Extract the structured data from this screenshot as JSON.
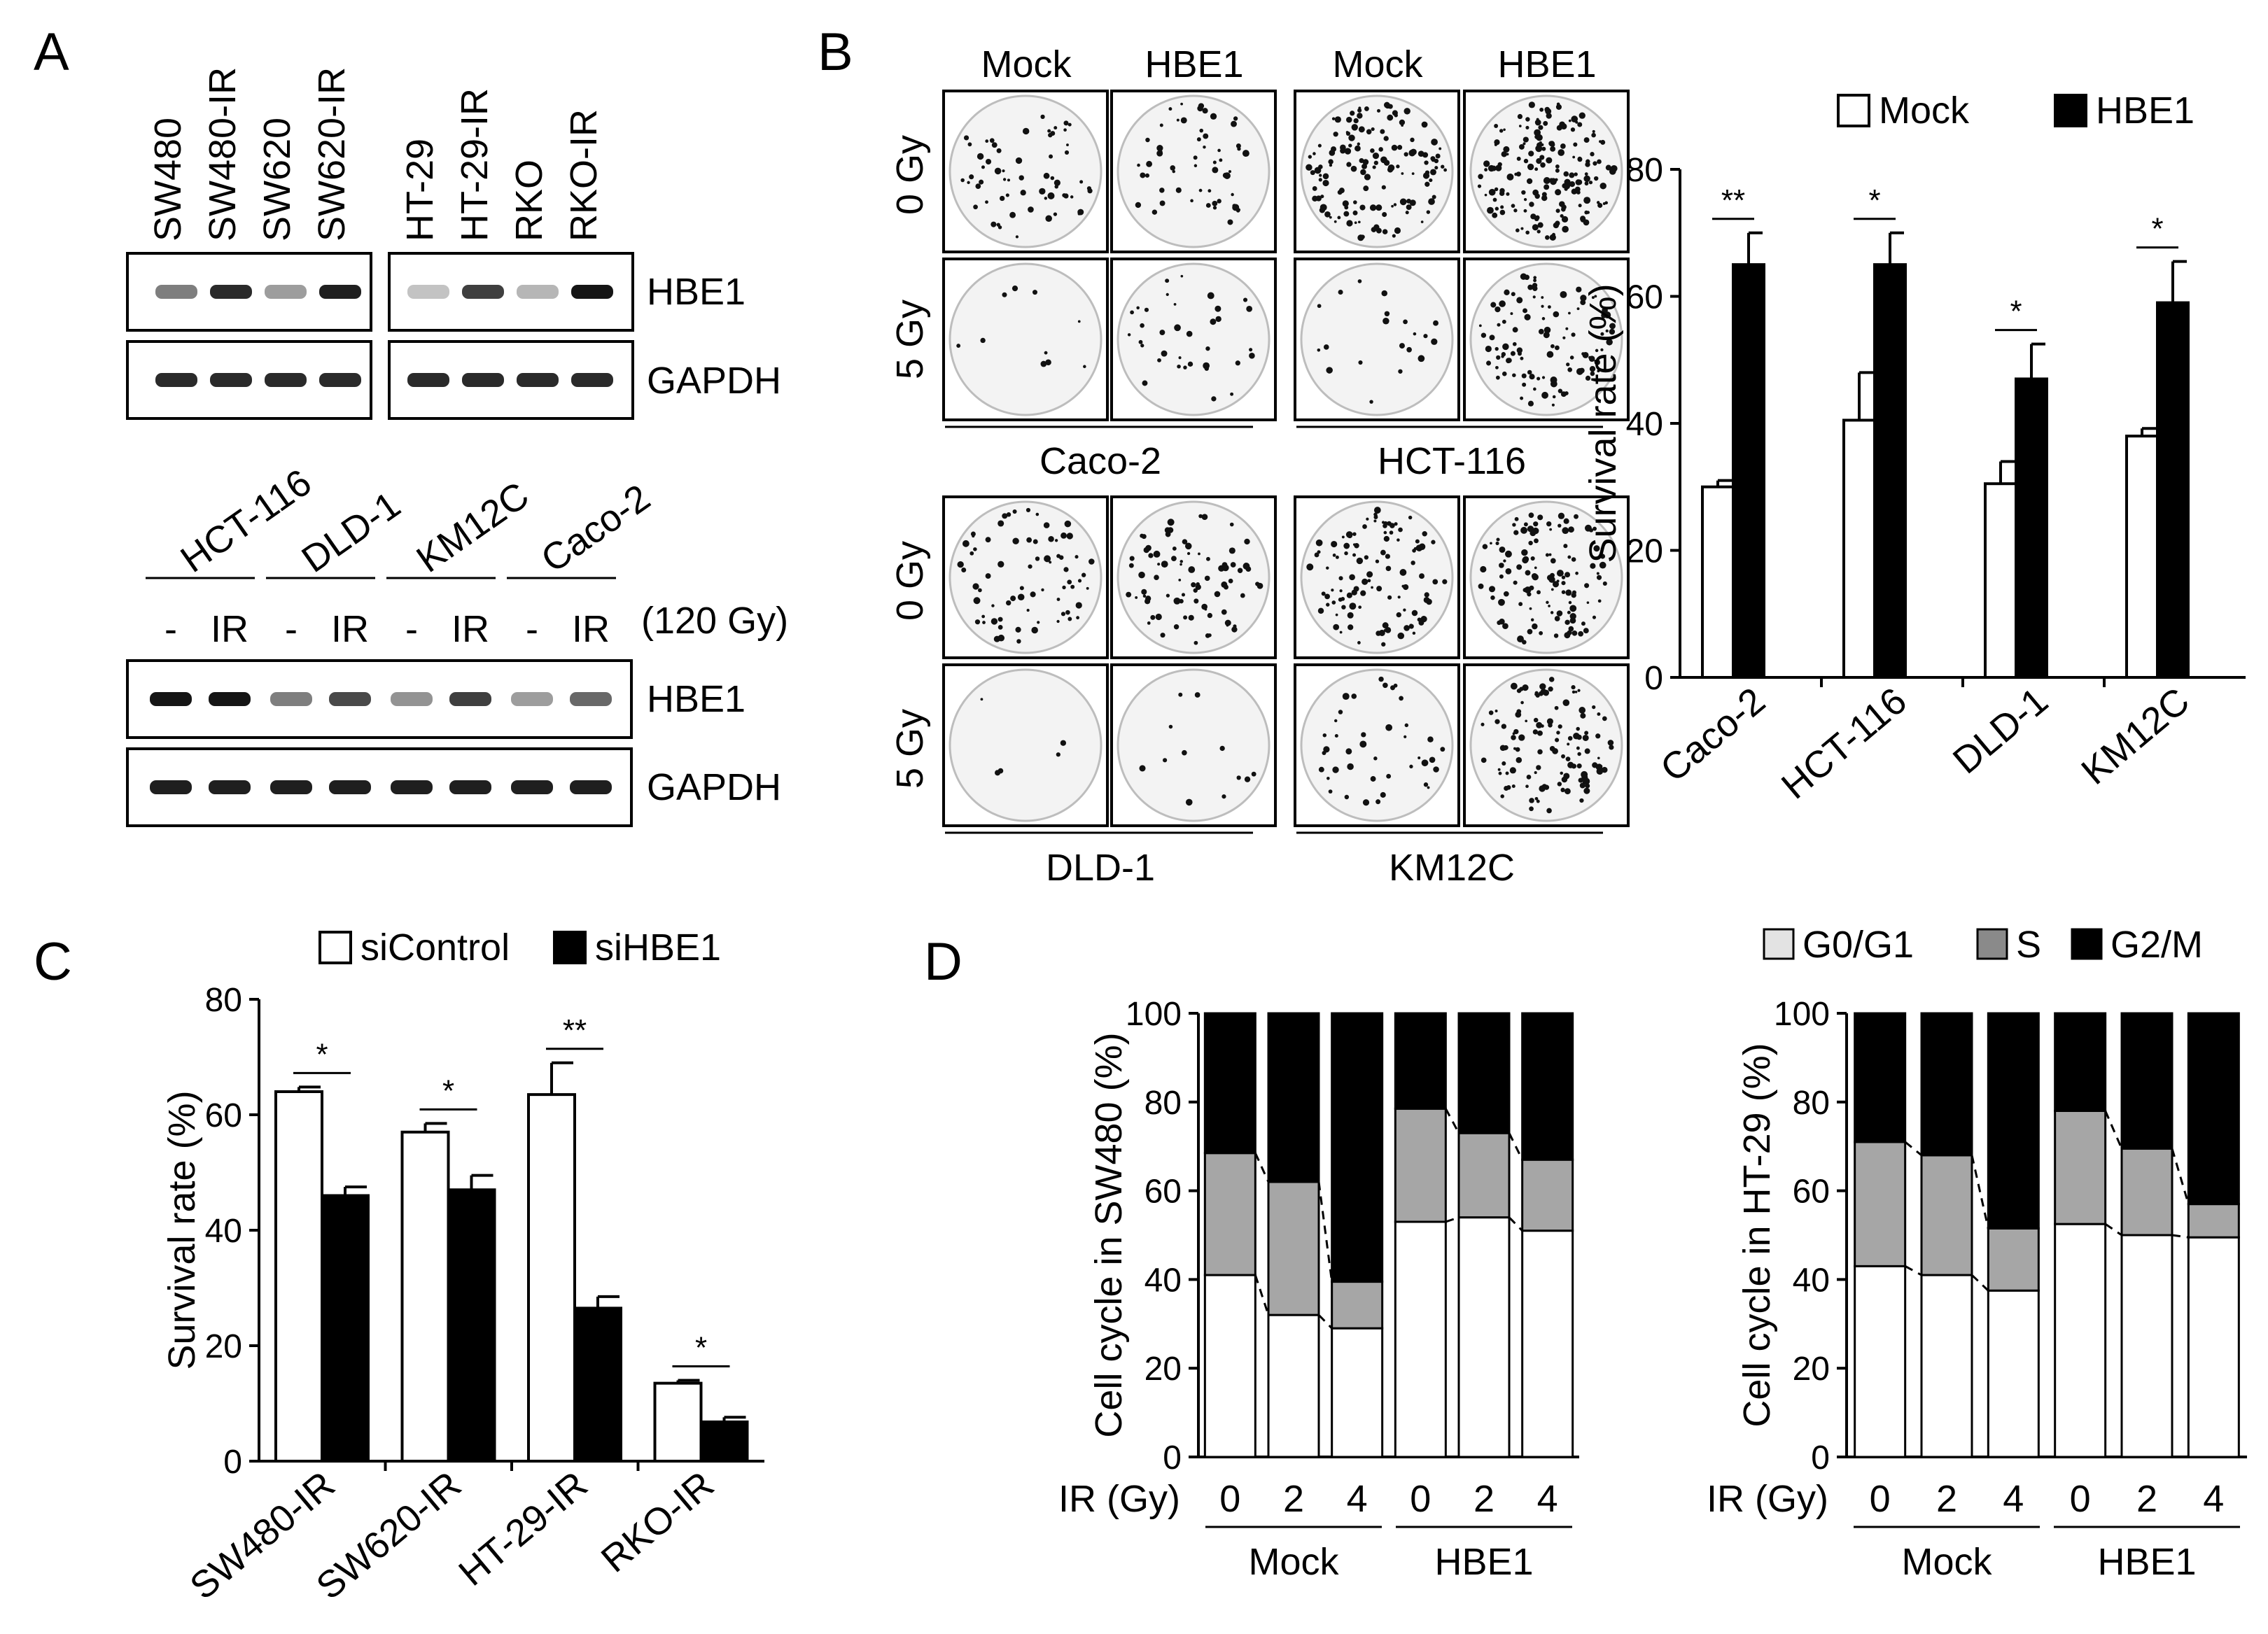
{
  "panels": {
    "A": {
      "letter": "A",
      "blot1": {
        "lanes": [
          "SW480",
          "SW480-IR",
          "SW620",
          "SW620-IR",
          "HT-29",
          "HT-29-IR",
          "RKO",
          "RKO-IR"
        ],
        "rows": [
          "HBE1",
          "GAPDH"
        ],
        "hbe1_band_intensity": [
          0.45,
          0.85,
          0.3,
          0.9,
          0.12,
          0.75,
          0.18,
          0.95
        ],
        "gapdh_band_intensity": [
          0.85,
          0.85,
          0.85,
          0.85,
          0.85,
          0.85,
          0.85,
          0.85
        ]
      },
      "blot2": {
        "groups": [
          "HCT-116",
          "DLD-1",
          "KM12C",
          "Caco-2"
        ],
        "lane_labels": [
          "-",
          "IR",
          "-",
          "IR",
          "-",
          "IR",
          "-",
          "IR"
        ],
        "dose": "(120 Gy)",
        "rows": [
          "HBE1",
          "GAPDH"
        ],
        "hbe1_band_intensity": [
          0.95,
          0.95,
          0.45,
          0.7,
          0.35,
          0.75,
          0.3,
          0.55
        ],
        "gapdh_band_intensity": [
          0.9,
          0.9,
          0.9,
          0.9,
          0.9,
          0.9,
          0.9,
          0.9
        ]
      }
    },
    "B": {
      "letter": "B",
      "plates_top": {
        "columns": [
          "Mock",
          "HBE1",
          "Mock",
          "HBE1"
        ],
        "rows": [
          "0 Gy",
          "5 Gy"
        ],
        "lines": [
          "Caco-2",
          "HCT-116"
        ]
      },
      "plates_bottom": {
        "rows": [
          "0 Gy",
          "5 Gy"
        ],
        "lines": [
          "DLD-1",
          "KM12C"
        ]
      },
      "colony_density_top": [
        [
          60,
          55,
          140,
          170
        ],
        [
          10,
          35,
          20,
          110
        ]
      ],
      "colony_density_bottom": [
        [
          70,
          80,
          110,
          120
        ],
        [
          5,
          12,
          40,
          120
        ]
      ]
    },
    "C": {
      "letter": "C"
    },
    "D": {
      "letter": "D"
    }
  },
  "chart_data": [
    {
      "type": "bar",
      "panel": "B",
      "categories": [
        "Caco-2",
        "HCT-116",
        "DLD-1",
        "KM12C"
      ],
      "ylabel": "Survival rate (%)",
      "ylim": [
        0,
        80
      ],
      "yticks": [
        "0",
        "20",
        "40",
        "60",
        "80"
      ],
      "legend_position": "top",
      "series": [
        {
          "name": "Mock",
          "values": [
            30,
            40.5,
            30.5,
            38
          ],
          "errors": [
            1,
            7.5,
            3.5,
            1.2
          ],
          "color": "#ffffff"
        },
        {
          "name": "HBE1",
          "values": [
            65,
            65,
            47,
            59
          ],
          "errors": [
            5,
            5,
            5.5,
            6.5
          ],
          "color": "#000000"
        }
      ],
      "significance": [
        "**",
        "*",
        "*",
        "*"
      ]
    },
    {
      "type": "bar",
      "panel": "C",
      "categories": [
        "SW480-IR",
        "SW620-IR",
        "HT-29-IR",
        "RKO-IR"
      ],
      "ylabel": "Survival rate (%)",
      "ylim": [
        0,
        80
      ],
      "yticks": [
        "0",
        "20",
        "40",
        "60",
        "80"
      ],
      "legend_position": "top",
      "series": [
        {
          "name": "siControl",
          "values": [
            64,
            57,
            63.5,
            13.5
          ],
          "errors": [
            0.8,
            1.5,
            5.5,
            0.5
          ],
          "color": "#ffffff"
        },
        {
          "name": "siHBE1",
          "values": [
            46,
            47,
            26.5,
            6.8
          ],
          "errors": [
            1.5,
            2.5,
            2,
            0.8
          ],
          "color": "#000000"
        }
      ],
      "significance": [
        "*",
        "*",
        "**",
        "*"
      ]
    },
    {
      "type": "bar",
      "panel": "D",
      "stacked": true,
      "ylabel": "Cell cycle in SW480 (%)",
      "xlabel": "IR (Gy)",
      "categories": [
        "0",
        "2",
        "4",
        "0",
        "2",
        "4"
      ],
      "groups": [
        "Mock",
        "HBE1"
      ],
      "ylim": [
        0,
        100
      ],
      "yticks": [
        "0",
        "20",
        "40",
        "60",
        "80",
        "100"
      ],
      "legend_position": "top-right",
      "series": [
        {
          "name": "G0/G1",
          "values": [
            41,
            32,
            29,
            53,
            54,
            51
          ],
          "color": "#ffffff"
        },
        {
          "name": "S",
          "values": [
            27.5,
            30,
            10.5,
            25.5,
            19,
            16
          ],
          "color": "#a6a6a6"
        },
        {
          "name": "G2/M",
          "values": [
            31.5,
            38,
            60.5,
            21.5,
            27,
            33
          ],
          "color": "#000000"
        }
      ]
    },
    {
      "type": "bar",
      "panel": "D",
      "stacked": true,
      "ylabel": "Cell cycle in HT-29 (%)",
      "xlabel": "IR (Gy)",
      "categories": [
        "0",
        "2",
        "4",
        "0",
        "2",
        "4"
      ],
      "groups": [
        "Mock",
        "HBE1"
      ],
      "ylim": [
        0,
        100
      ],
      "yticks": [
        "0",
        "20",
        "40",
        "60",
        "80",
        "100"
      ],
      "legend_position": "top-right",
      "series": [
        {
          "name": "G0/G1",
          "values": [
            43,
            41,
            37.5,
            52.5,
            50,
            49.5
          ],
          "color": "#ffffff"
        },
        {
          "name": "S",
          "values": [
            28,
            27,
            14,
            25.5,
            19.5,
            7.5
          ],
          "color": "#a6a6a6"
        },
        {
          "name": "G2/M",
          "values": [
            29,
            32,
            48.5,
            22,
            30.5,
            43
          ],
          "color": "#000000"
        }
      ]
    }
  ],
  "legend_d": [
    "G0/G1",
    "S",
    "G2/M"
  ]
}
